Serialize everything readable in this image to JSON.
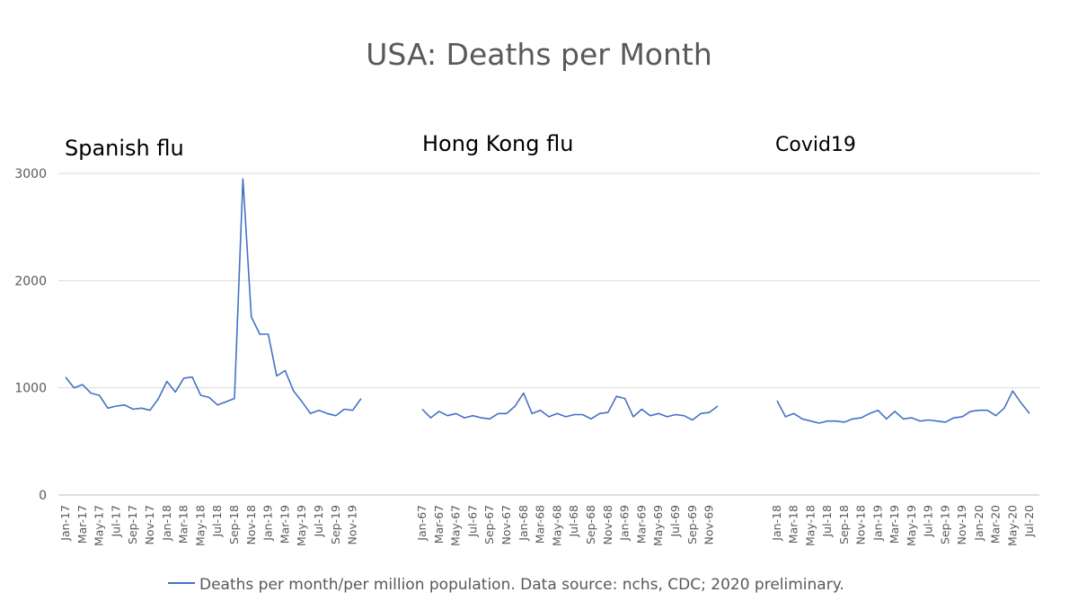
{
  "chart_data": {
    "type": "line",
    "title": "USA: Deaths per Month",
    "annotations": [
      "Spanish flu",
      "Hong Kong flu",
      "Covid19"
    ],
    "y_ticks": [
      "0",
      "1000",
      "2000",
      "3000"
    ],
    "ylim": [
      0,
      3000
    ],
    "grid": true,
    "legend_position": "bottom",
    "series": [
      {
        "name": "Deaths per month/per million population. Data source: nchs, CDC; 2020 preliminary.",
        "color": "#4472C4",
        "segments": [
          {
            "label": "Spanish flu",
            "tick_labels": [
              "Jan-17",
              "Mar-17",
              "May-17",
              "Jul-17",
              "Sep-17",
              "Nov-17",
              "Jan-18",
              "Mar-18",
              "May-18",
              "Jul-18",
              "Sep-18",
              "Nov-18",
              "Jan-19",
              "Mar-19",
              "May-19",
              "Jul-19",
              "Sep-19",
              "Nov-19"
            ],
            "values": [
              1100,
              1000,
              1030,
              950,
              930,
              810,
              830,
              840,
              800,
              810,
              790,
              900,
              1060,
              960,
              1090,
              1100,
              930,
              910,
              840,
              870,
              900,
              2950,
              1660,
              1500,
              1500,
              1110,
              1160,
              970,
              870,
              760,
              790,
              760,
              740,
              800,
              790,
              900
            ]
          },
          {
            "label": "Hong Kong flu",
            "tick_labels": [
              "Jan-67",
              "Mar-67",
              "May-67",
              "Jul-67",
              "Sep-67",
              "Nov-67",
              "Jan-68",
              "Mar-68",
              "May-68",
              "Jul-68",
              "Sep-68",
              "Nov-68",
              "Jan-69",
              "Mar-69",
              "May-69",
              "Jul-69",
              "Sep-69",
              "Nov-69"
            ],
            "values": [
              800,
              720,
              780,
              740,
              760,
              720,
              740,
              720,
              710,
              760,
              760,
              830,
              950,
              760,
              790,
              730,
              760,
              730,
              750,
              750,
              710,
              760,
              770,
              920,
              900,
              730,
              800,
              740,
              760,
              730,
              750,
              740,
              700,
              760,
              770,
              830
            ]
          },
          {
            "label": "Covid19",
            "tick_labels": [
              "Jan-18",
              "Mar-18",
              "May-18",
              "Jul-18",
              "Sep-18",
              "Nov-18",
              "Jan-19",
              "Mar-19",
              "May-19",
              "Jul-19",
              "Sep-19",
              "Nov-19",
              "Jan-20",
              "Mar-20",
              "May-20",
              "Jul-20"
            ],
            "values": [
              880,
              730,
              760,
              710,
              690,
              670,
              690,
              690,
              680,
              710,
              720,
              760,
              790,
              710,
              780,
              710,
              720,
              690,
              700,
              690,
              680,
              720,
              730,
              780,
              790,
              790,
              740,
              810,
              970,
              860,
              760
            ]
          }
        ]
      }
    ]
  }
}
